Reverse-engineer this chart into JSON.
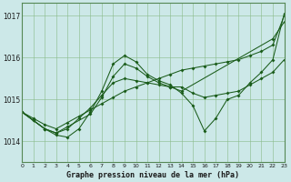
{
  "xlabel": "Graphe pression niveau de la mer (hPa)",
  "bg_color": "#cce8e8",
  "line_color": "#1a5c1a",
  "grid_color": "#88bb88",
  "ylim": [
    1013.5,
    1017.3
  ],
  "xlim": [
    0,
    23
  ],
  "yticks": [
    1014,
    1015,
    1016,
    1017
  ],
  "xticks": [
    0,
    1,
    2,
    3,
    4,
    5,
    6,
    7,
    8,
    9,
    10,
    11,
    12,
    13,
    14,
    15,
    16,
    17,
    18,
    19,
    20,
    21,
    22,
    23
  ],
  "series": [
    {
      "x": [
        0,
        1,
        2,
        3,
        4,
        5,
        6,
        7,
        8,
        9,
        10,
        11,
        12,
        13,
        14,
        15,
        16,
        17,
        18,
        19,
        20,
        21,
        22,
        23
      ],
      "y": [
        1014.7,
        1014.55,
        1014.4,
        1014.3,
        1014.45,
        1014.6,
        1014.75,
        1014.9,
        1015.05,
        1015.2,
        1015.3,
        1015.4,
        1015.5,
        1015.6,
        1015.7,
        1015.75,
        1015.8,
        1015.85,
        1015.9,
        1015.95,
        1016.05,
        1016.15,
        1016.3,
        1017.0
      ]
    },
    {
      "x": [
        0,
        1,
        2,
        3,
        4,
        5,
        6,
        7,
        8,
        9,
        10,
        11,
        12,
        13,
        14,
        15,
        16,
        17,
        18,
        19,
        20,
        21,
        22,
        23
      ],
      "y": [
        1014.7,
        1014.5,
        1014.3,
        1014.15,
        1014.1,
        1014.3,
        1014.7,
        1015.2,
        1015.85,
        1016.05,
        1015.9,
        1015.6,
        1015.45,
        1015.35,
        1015.15,
        1014.85,
        1014.25,
        1014.55,
        1015.0,
        1015.1,
        1015.4,
        1015.65,
        1015.95,
        1017.05
      ]
    },
    {
      "x": [
        0,
        2,
        3,
        4,
        6,
        7,
        8,
        9,
        10,
        11,
        12,
        13,
        14,
        22,
        23
      ],
      "y": [
        1014.7,
        1014.3,
        1014.2,
        1014.35,
        1014.65,
        1015.05,
        1015.55,
        1015.85,
        1015.75,
        1015.55,
        1015.4,
        1015.3,
        1015.2,
        1016.45,
        1016.85
      ]
    },
    {
      "x": [
        0,
        1,
        2,
        3,
        4,
        5,
        6,
        7,
        8,
        9,
        10,
        11,
        12,
        13,
        14,
        15,
        16,
        17,
        18,
        19,
        20,
        21,
        22,
        23
      ],
      "y": [
        1014.7,
        1014.5,
        1014.3,
        1014.2,
        1014.3,
        1014.55,
        1014.8,
        1015.1,
        1015.4,
        1015.5,
        1015.45,
        1015.4,
        1015.35,
        1015.3,
        1015.3,
        1015.15,
        1015.05,
        1015.1,
        1015.15,
        1015.2,
        1015.35,
        1015.5,
        1015.65,
        1015.95
      ]
    }
  ]
}
